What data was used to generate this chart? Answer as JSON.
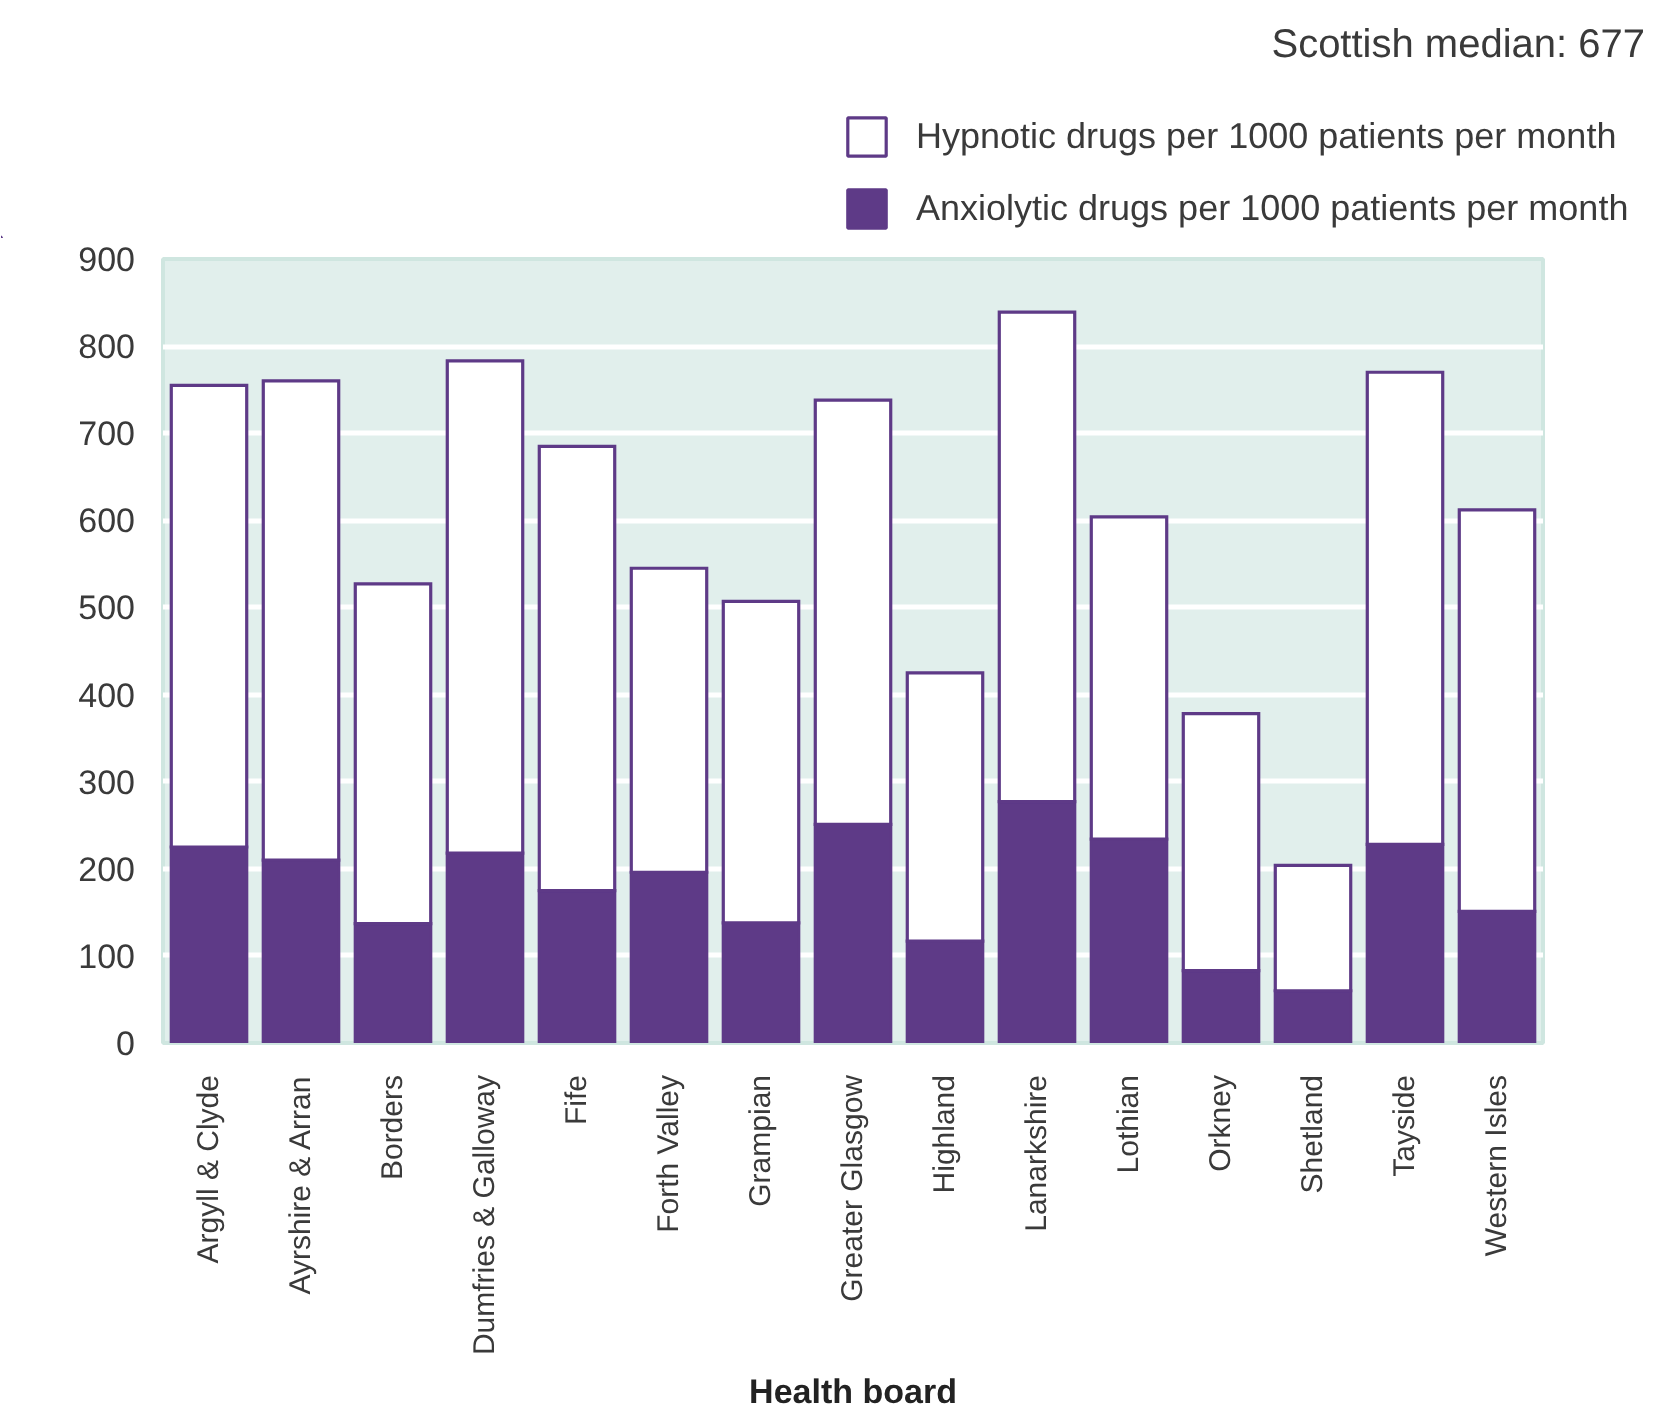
{
  "chart_data": {
    "type": "bar",
    "stacked": true,
    "categories": [
      "Argyll & Clyde",
      "Ayrshire & Arran",
      "Borders",
      "Dumfries & Galloway",
      "Fife",
      "Forth Valley",
      "Grampian",
      "Greater Glasgow",
      "Highland",
      "Lanarkshire",
      "Lothian",
      "Orkney",
      "Shetland",
      "Tayside",
      "Western Isles"
    ],
    "series": [
      {
        "name": "Anxiolytic drugs per 1000 patients per month",
        "color": "#5e3a87",
        "values": [
          225,
          210,
          137,
          218,
          175,
          196,
          138,
          251,
          117,
          277,
          234,
          83,
          60,
          228,
          151
        ]
      },
      {
        "name": "Hypnotic drugs per 1000 patients per month",
        "color": "#ffffff",
        "values": [
          530,
          550,
          390,
          565,
          510,
          349,
          369,
          487,
          308,
          562,
          370,
          295,
          144,
          542,
          461
        ]
      }
    ],
    "xlabel": "Health board",
    "ylim": [
      0,
      900
    ],
    "yticks": [
      0,
      100,
      200,
      300,
      400,
      500,
      600,
      700,
      800,
      900
    ],
    "grid": "y",
    "legend": "top right",
    "annotations": [
      "Scottish median: 677"
    ]
  }
}
